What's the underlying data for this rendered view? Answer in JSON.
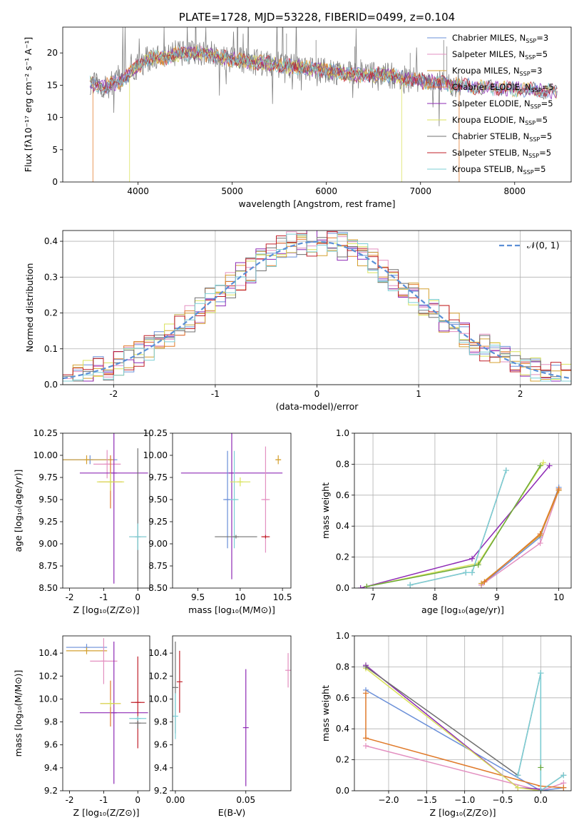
{
  "colors": {
    "Chabrier MILES": "#6a8fd8",
    "Salpeter MILES": "#e38fc0",
    "Kroupa MILES": "#d4a030",
    "Chabrier ELODIE": "#e07a2a",
    "Salpeter ELODIE": "#8e2ab5",
    "Kroupa ELODIE": "#d9e25a",
    "Chabrier STELIB": "#707070",
    "Salpeter STELIB": "#c0202a",
    "Kroupa STELIB": "#7ccfd6",
    "green": "#6aa839",
    "gaussian": "#5b8fd6"
  },
  "chart_data": [
    {
      "type": "line",
      "title": "PLATE=1728, MJD=53228, FIBERID=0499, z=0.104",
      "xlabel": "wavelength [Angstrom, rest frame]",
      "ylabel": "Flux [fλ10⁻¹⁷ erg cm⁻² s⁻¹ A⁻¹]",
      "xlim": [
        3200,
        8600
      ],
      "ylim": [
        0,
        24
      ],
      "xticks": [
        4000,
        5000,
        6000,
        7000,
        8000
      ],
      "yticks": [
        0,
        5,
        10,
        15,
        20
      ],
      "legend_placement": "upper-right",
      "legend": [
        {
          "name": "Chabrier MILES, N",
          "sub": "SSP",
          "suffix": "=3"
        },
        {
          "name": "Salpeter MILES, N",
          "sub": "SSP",
          "suffix": "=5"
        },
        {
          "name": "Kroupa MILES, N",
          "sub": "SSP",
          "suffix": "=3"
        },
        {
          "name": "Chabrier ELODIE, N",
          "sub": "SSP",
          "suffix": "=5"
        },
        {
          "name": "Salpeter ELODIE, N",
          "sub": "SSP",
          "suffix": "=5"
        },
        {
          "name": "Kroupa ELODIE, N",
          "sub": "SSP",
          "suffix": "=5"
        },
        {
          "name": "Chabrier STELIB, N",
          "sub": "SSP",
          "suffix": "=5"
        },
        {
          "name": "Salpeter STELIB, N",
          "sub": "SSP",
          "suffix": "=5"
        },
        {
          "name": "Kroupa STELIB, N",
          "sub": "SSP",
          "suffix": "=5"
        }
      ],
      "continuum": [
        [
          3500,
          15.2
        ],
        [
          3650,
          14.8
        ],
        [
          3800,
          15.6
        ],
        [
          3900,
          16.8
        ],
        [
          4000,
          18.0
        ],
        [
          4100,
          19.0
        ],
        [
          4200,
          19.4
        ],
        [
          4300,
          19.2
        ],
        [
          4400,
          19.8
        ],
        [
          4500,
          19.9
        ],
        [
          4600,
          20.0
        ],
        [
          4700,
          19.8
        ],
        [
          4800,
          19.5
        ],
        [
          5000,
          19.0
        ],
        [
          5200,
          18.6
        ],
        [
          5400,
          18.3
        ],
        [
          5600,
          17.9
        ],
        [
          5800,
          17.6
        ],
        [
          6000,
          17.3
        ],
        [
          6200,
          16.8
        ],
        [
          6400,
          16.5
        ],
        [
          6600,
          16.7
        ],
        [
          6800,
          16.1
        ],
        [
          7000,
          15.6
        ],
        [
          7200,
          15.3
        ],
        [
          7400,
          15.0
        ],
        [
          7600,
          14.7
        ],
        [
          8000,
          14.4
        ],
        [
          8400,
          14.0
        ]
      ],
      "model_edges": [
        {
          "model": "Chabrier ELODIE",
          "start": 3520,
          "end": 7410
        },
        {
          "model": "Kroupa ELODIE",
          "start": 3910,
          "end": 6800
        },
        {
          "model": "Kroupa STELIB",
          "start": 3490,
          "end": 8450
        }
      ]
    },
    {
      "type": "histogram",
      "xlabel": "(data-model)/error",
      "ylabel": "Normed distribution",
      "xlim": [
        -2.5,
        2.5
      ],
      "ylim": [
        0,
        0.43
      ],
      "xticks": [
        -2,
        -1,
        0,
        1,
        2
      ],
      "yticks": [
        0.0,
        0.1,
        0.2,
        0.3,
        0.4
      ],
      "bin_width": 0.1,
      "legend_placement": "upper-right",
      "gaussian_label": "𝒩(0, 1)"
    },
    {
      "type": "scatter",
      "xlabel": "Z [log₁₀(Z/Z⊙)]",
      "ylabel": "age  [log₁₀(age/yr)]",
      "xlim": [
        -2.2,
        0.35
      ],
      "ylim": [
        8.5,
        10.25
      ],
      "xticks": [
        -2,
        -1,
        0
      ],
      "yticks": [
        8.5,
        8.75,
        9.0,
        9.25,
        9.5,
        9.75,
        10.0,
        10.25
      ],
      "points": [
        {
          "model": "Chabrier MILES",
          "x": -1.4,
          "xerr": 0.8,
          "y": 9.95,
          "yerr": 0.05
        },
        {
          "model": "Kroupa MILES",
          "x": -1.5,
          "xerr": 0.8,
          "y": 9.95,
          "yerr": 0.05
        },
        {
          "model": "Salpeter MILES",
          "x": -0.9,
          "xerr": 0.4,
          "y": 9.9,
          "yerr": 0.16
        },
        {
          "model": "Salpeter ELODIE",
          "x": -0.7,
          "xerr": 1.0,
          "y": 9.8,
          "yerr": 1.25
        },
        {
          "model": "Chabrier ELODIE",
          "x": -0.8,
          "xerr": 0.35,
          "y": 9.7,
          "yerr": 0.3
        },
        {
          "model": "Kroupa ELODIE",
          "x": -0.8,
          "xerr": 0.4,
          "y": 9.7,
          "yerr": 0.1
        },
        {
          "model": "Chabrier STELIB",
          "x": 0.0,
          "xerr": 0.25,
          "y": 9.08,
          "yerr": 1.0
        },
        {
          "model": "Kroupa STELIB",
          "x": 0.0,
          "xerr": 0.25,
          "y": 9.08,
          "yerr": 0.15
        }
      ]
    },
    {
      "type": "scatter",
      "xlabel": "mass [log₁₀(M/M⊙)]",
      "ylabel": "",
      "xlim": [
        9.2,
        10.6
      ],
      "ylim": [
        8.5,
        10.25
      ],
      "xticks": [
        9.5,
        10.0,
        10.5
      ],
      "yticks": [
        8.5,
        8.75,
        9.0,
        9.25,
        9.5,
        9.75,
        10.0,
        10.25
      ],
      "points": [
        {
          "model": "Salpeter ELODIE",
          "x": 9.9,
          "xerr": 0.6,
          "y": 9.8,
          "yerr": 1.2
        },
        {
          "model": "Chabrier MILES",
          "x": 9.85,
          "xerr": 0.05,
          "y": 9.5,
          "yerr": 0.55
        },
        {
          "model": "Kroupa STELIB",
          "x": 9.93,
          "xerr": 0.05,
          "y": 9.5,
          "yerr": 0.55
        },
        {
          "model": "Salpeter MILES",
          "x": 10.3,
          "xerr": 0.05,
          "y": 9.5,
          "yerr": 0.6
        },
        {
          "model": "Kroupa ELODIE",
          "x": 10.0,
          "xerr": 0.12,
          "y": 9.7,
          "yerr": 0.05
        },
        {
          "model": "Chabrier STELIB",
          "x": 9.95,
          "xerr": 0.25,
          "y": 9.08,
          "yerr": 0.02
        },
        {
          "model": "Salpeter STELIB",
          "x": 10.3,
          "xerr": 0.05,
          "y": 9.08,
          "yerr": 0.02
        },
        {
          "model": "Kroupa MILES",
          "x": 10.45,
          "xerr": 0.03,
          "y": 9.95,
          "yerr": 0.05
        }
      ]
    },
    {
      "type": "line",
      "xlabel": "age  [log₁₀(age/yr)]",
      "ylabel": "mass weight",
      "xlim": [
        6.7,
        10.2
      ],
      "ylim": [
        0,
        1.0
      ],
      "xticks": [
        7,
        8,
        9,
        10
      ],
      "yticks": [
        0.0,
        0.2,
        0.4,
        0.6,
        0.8,
        1.0
      ],
      "series": [
        {
          "model": "Chabrier MILES",
          "x": [
            8.75,
            9.7,
            10.0
          ],
          "y": [
            0.02,
            0.33,
            0.65
          ]
        },
        {
          "model": "Salpeter MILES",
          "x": [
            8.75,
            9.7,
            10.0
          ],
          "y": [
            0.02,
            0.29,
            0.63
          ]
        },
        {
          "model": "Kroupa MILES",
          "x": [
            8.75,
            9.7,
            10.0
          ],
          "y": [
            0.03,
            0.34,
            0.63
          ]
        },
        {
          "model": "Chabrier ELODIE",
          "x": [
            8.8,
            9.7,
            10.0
          ],
          "y": [
            0.04,
            0.35,
            0.64
          ]
        },
        {
          "model": "Salpeter ELODIE",
          "x": [
            6.8,
            8.6,
            9.85
          ],
          "y": [
            0.0,
            0.19,
            0.79
          ]
        },
        {
          "model": "Kroupa ELODIE",
          "x": [
            6.9,
            8.7,
            9.75
          ],
          "y": [
            0.01,
            0.16,
            0.81
          ]
        },
        {
          "model": "Chabrier STELIB",
          "x": [
            7.6,
            8.5,
            8.6,
            9.15
          ],
          "y": [
            0.02,
            0.1,
            0.1,
            0.76
          ]
        },
        {
          "model": "Kroupa STELIB",
          "x": [
            7.6,
            8.5,
            8.6,
            9.15
          ],
          "y": [
            0.02,
            0.1,
            0.1,
            0.76
          ]
        },
        {
          "model": "green",
          "x": [
            6.9,
            8.7,
            9.7
          ],
          "y": [
            0.01,
            0.15,
            0.79
          ]
        }
      ]
    },
    {
      "type": "scatter",
      "xlabel": "Z [log₁₀(Z/Z⊙)]",
      "ylabel": "mass [log₁₀(M/M⊙)]",
      "xlim": [
        -2.2,
        0.35
      ],
      "ylim": [
        9.2,
        10.55
      ],
      "xticks": [
        -2,
        -1,
        0
      ],
      "yticks": [
        9.2,
        9.4,
        9.6,
        9.8,
        10.0,
        10.2,
        10.4
      ],
      "points": [
        {
          "model": "Chabrier MILES",
          "x": -1.5,
          "xerr": 0.6,
          "y": 10.45,
          "yerr": 0.03
        },
        {
          "model": "Kroupa MILES",
          "x": -1.5,
          "xerr": 0.6,
          "y": 10.42,
          "yerr": 0.03
        },
        {
          "model": "Salpeter MILES",
          "x": -1.0,
          "xerr": 0.4,
          "y": 10.33,
          "yerr": 0.2
        },
        {
          "model": "Salpeter ELODIE",
          "x": -0.7,
          "xerr": 1.0,
          "y": 9.88,
          "yerr": 0.62
        },
        {
          "model": "Chabrier ELODIE",
          "x": -0.8,
          "xerr": 0.3,
          "y": 9.96,
          "yerr": 0.2
        },
        {
          "model": "Kroupa ELODIE",
          "x": -0.8,
          "xerr": 0.3,
          "y": 9.96,
          "yerr": 0.03
        },
        {
          "model": "Salpeter STELIB",
          "x": 0.0,
          "xerr": 0.2,
          "y": 9.97,
          "yerr": 0.4
        },
        {
          "model": "Chabrier STELIB",
          "x": 0.0,
          "xerr": 0.25,
          "y": 9.79,
          "yerr": 0.05
        },
        {
          "model": "Kroupa STELIB",
          "x": 0.0,
          "xerr": 0.25,
          "y": 9.83,
          "yerr": 0.02
        }
      ]
    },
    {
      "type": "scatter",
      "xlabel": "E(B-V)",
      "ylabel": "",
      "xlim": [
        -0.002,
        0.082
      ],
      "ylim": [
        9.2,
        10.55
      ],
      "xticks": [
        0.0,
        0.05
      ],
      "xticklabels": [
        "0.00",
        "0.05"
      ],
      "yticks": [
        9.2,
        9.4,
        9.6,
        9.8,
        10.0,
        10.2,
        10.4
      ],
      "points": [
        {
          "model": "Chabrier STELIB",
          "x": 0.0,
          "y": 10.1,
          "yerr": 0.4
        },
        {
          "model": "Kroupa STELIB",
          "x": 0.0,
          "y": 9.85,
          "yerr": 0.2
        },
        {
          "model": "Salpeter STELIB",
          "x": 0.003,
          "y": 10.15,
          "yerr": 0.27
        },
        {
          "model": "Salpeter ELODIE",
          "x": 0.05,
          "y": 9.75,
          "yerr": 0.51
        },
        {
          "model": "Salpeter MILES",
          "x": 0.08,
          "y": 10.25,
          "yerr": 0.15
        }
      ]
    },
    {
      "type": "line",
      "xlabel": "Z [log₁₀(Z/Z⊙)]",
      "ylabel": "mass weight",
      "xlim": [
        -2.45,
        0.4
      ],
      "ylim": [
        0,
        1.0
      ],
      "xticks": [
        -2.0,
        -1.5,
        -1.0,
        -0.5,
        0.0
      ],
      "xticklabels": [
        "−2.0",
        "−1.5",
        "−1.0",
        "−0.5",
        "0.0"
      ],
      "yticks": [
        0.0,
        0.2,
        0.4,
        0.6,
        0.8,
        1.0
      ],
      "series": [
        {
          "model": "Chabrier MILES",
          "x": [
            -2.3,
            0.0,
            0.3
          ],
          "y": [
            0.65,
            0.0,
            0.02
          ]
        },
        {
          "model": "Salpeter MILES",
          "x": [
            -2.3,
            0.0,
            0.3
          ],
          "y": [
            0.29,
            0.0,
            0.05
          ]
        },
        {
          "model": "Chabrier ELODIE",
          "x": [
            -2.3,
            -2.3,
            0.0,
            0.3
          ],
          "y": [
            0.63,
            0.34,
            0.03,
            0.02
          ]
        },
        {
          "model": "Salpeter ELODIE",
          "x": [
            -2.3,
            -0.3,
            0.0
          ],
          "y": [
            0.81,
            0.02,
            0.01
          ]
        },
        {
          "model": "Kroupa ELODIE",
          "x": [
            -2.3,
            -0.3,
            0.0
          ],
          "y": [
            0.79,
            0.02,
            0.0
          ]
        },
        {
          "model": "Chabrier STELIB",
          "x": [
            -2.3,
            -0.3,
            0.0,
            0.0,
            0.3
          ],
          "y": [
            0.8,
            0.1,
            0.76,
            0.0,
            0.1
          ]
        },
        {
          "model": "Kroupa STELIB",
          "x": [
            -0.3,
            0.0,
            0.0,
            0.3
          ],
          "y": [
            0.1,
            0.76,
            0.0,
            0.1
          ]
        },
        {
          "model": "green",
          "x": [
            0.0
          ],
          "y": [
            0.15
          ]
        }
      ]
    }
  ]
}
